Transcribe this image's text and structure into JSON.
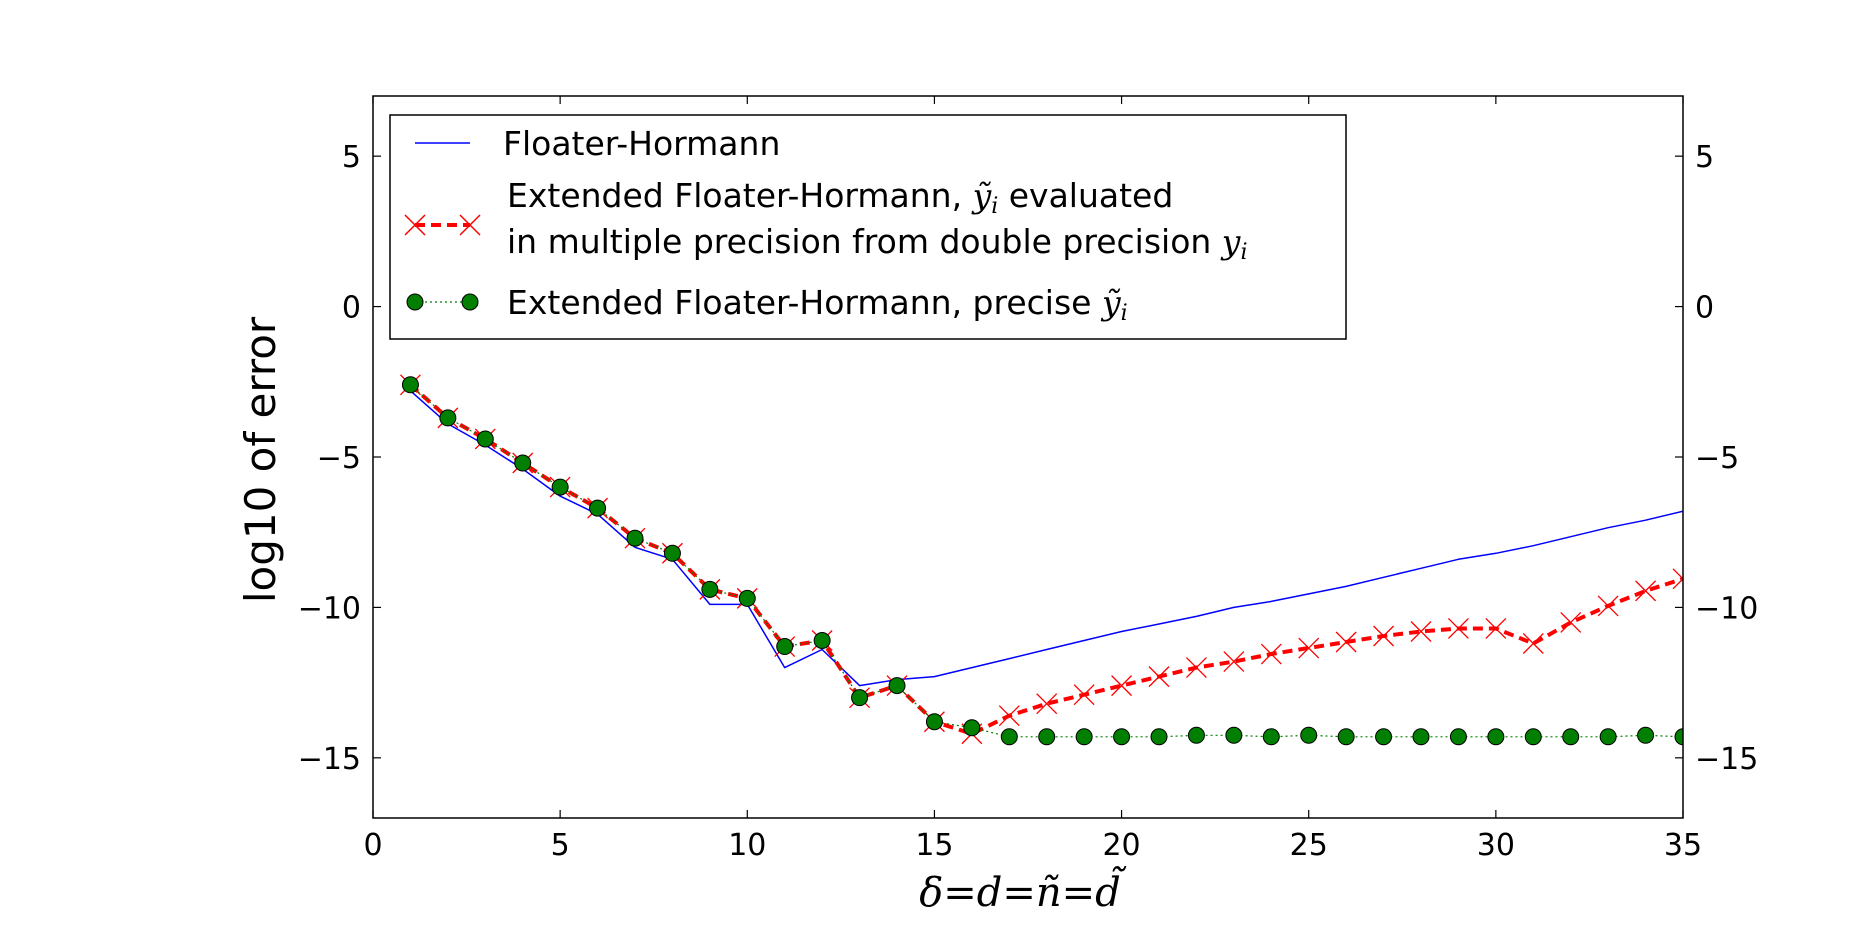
{
  "chart_data": {
    "type": "line",
    "xlabel": "δ=d=ñ=d̃",
    "ylabel": "log10 of error",
    "xlim": [
      0,
      35
    ],
    "ylim": [
      -17,
      7
    ],
    "xticks": [
      0,
      5,
      10,
      15,
      20,
      25,
      30,
      35
    ],
    "yticks": [
      -15,
      -10,
      -5,
      0,
      5
    ],
    "yticks_right": true,
    "grid": false,
    "legend_position": "upper-left",
    "series": [
      {
        "name": "Floater-Hormann",
        "style": "solid-line",
        "color": "#0000ff",
        "x": [
          1,
          2,
          3,
          4,
          5,
          6,
          7,
          8,
          9,
          10,
          11,
          12,
          13,
          14,
          15,
          16,
          17,
          18,
          19,
          20,
          21,
          22,
          23,
          24,
          25,
          26,
          27,
          28,
          29,
          30,
          31,
          32,
          33,
          34,
          35
        ],
        "y": [
          -2.8,
          -3.9,
          -4.6,
          -5.4,
          -6.3,
          -6.9,
          -8.0,
          -8.4,
          -9.9,
          -9.9,
          -12.0,
          -11.4,
          -12.6,
          -12.4,
          -12.3,
          -12.0,
          -11.7,
          -11.4,
          -11.1,
          -10.8,
          -10.55,
          -10.3,
          -10.0,
          -9.8,
          -9.55,
          -9.3,
          -9.0,
          -8.7,
          -8.4,
          -8.2,
          -7.95,
          -7.65,
          -7.35,
          -7.1,
          -6.8
        ]
      },
      {
        "name": "Extended Floater-Hormann, ỹ_i evaluated in multiple precision from double precision y_i",
        "style": "dashed-line-x-markers",
        "color": "#ff0000",
        "x": [
          1,
          2,
          3,
          4,
          5,
          6,
          7,
          8,
          9,
          10,
          11,
          12,
          13,
          14,
          15,
          16,
          17,
          18,
          19,
          20,
          21,
          22,
          23,
          24,
          25,
          26,
          27,
          28,
          29,
          30,
          31,
          32,
          33,
          34,
          35
        ],
        "y": [
          -2.6,
          -3.7,
          -4.4,
          -5.2,
          -6.0,
          -6.7,
          -7.7,
          -8.2,
          -9.4,
          -9.7,
          -11.3,
          -11.1,
          -13.0,
          -12.6,
          -13.8,
          -14.2,
          -13.6,
          -13.2,
          -12.9,
          -12.6,
          -12.3,
          -12.0,
          -11.8,
          -11.55,
          -11.35,
          -11.15,
          -10.95,
          -10.8,
          -10.7,
          -10.7,
          -11.2,
          -10.5,
          -9.95,
          -9.45,
          -9.05
        ]
      },
      {
        "name": "Extended Floater-Hormann, precise ỹ_i",
        "style": "dotted-line-circle-markers",
        "color": "#007f00",
        "x": [
          1,
          2,
          3,
          4,
          5,
          6,
          7,
          8,
          9,
          10,
          11,
          12,
          13,
          14,
          15,
          16,
          17,
          18,
          19,
          20,
          21,
          22,
          23,
          24,
          25,
          26,
          27,
          28,
          29,
          30,
          31,
          32,
          33,
          34,
          35
        ],
        "y": [
          -2.6,
          -3.7,
          -4.4,
          -5.2,
          -6.0,
          -6.7,
          -7.7,
          -8.2,
          -9.4,
          -9.7,
          -11.3,
          -11.1,
          -13.0,
          -12.6,
          -13.8,
          -14.0,
          -14.3,
          -14.3,
          -14.3,
          -14.3,
          -14.3,
          -14.25,
          -14.25,
          -14.3,
          -14.25,
          -14.3,
          -14.3,
          -14.3,
          -14.3,
          -14.3,
          -14.3,
          -14.3,
          -14.3,
          -14.25,
          -14.3
        ]
      }
    ]
  },
  "legend": {
    "fh": "Floater-Hormann",
    "efh_line1_a": "Extended Floater-Hormann, ",
    "efh_line1_math": "ỹ",
    "efh_line1_sub": "i",
    "efh_line1_b": " evaluated",
    "efh_line2_a": " in multiple precision from double precision ",
    "efh_line2_math": "y",
    "efh_line2_sub": "i",
    "prec_a": "Extended Floater-Hormann, precise ",
    "prec_math": "ỹ",
    "prec_sub": "i"
  },
  "labels": {
    "ylabel": "log10 of error",
    "xlabel_math": "δ=d=ñ=d̃"
  }
}
